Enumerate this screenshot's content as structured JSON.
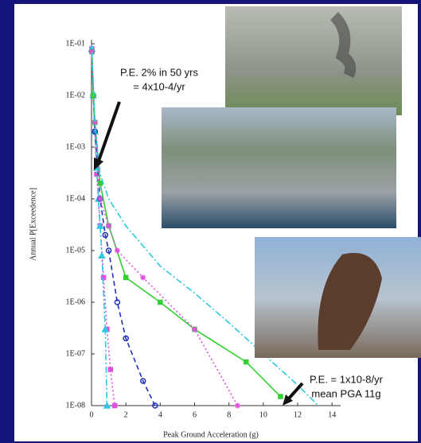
{
  "chart_data": {
    "type": "line",
    "x_label": "Peak Ground Acceleration (g)",
    "y_label": "Annual P[Exceedence]",
    "log_y": true,
    "xlim": [
      0,
      14.5
    ],
    "xticks": [
      0,
      2,
      4,
      6,
      8,
      10,
      12,
      14
    ],
    "ylim": [
      1e-08,
      0.1
    ],
    "yticks": [
      {
        "value": 0.1,
        "label": "1E-01"
      },
      {
        "value": 0.01,
        "label": "1E-02"
      },
      {
        "value": 0.001,
        "label": "1E-03"
      },
      {
        "value": 0.0001,
        "label": "1E-04"
      },
      {
        "value": 1e-05,
        "label": "1E-05"
      },
      {
        "value": 1e-06,
        "label": "1E-06"
      },
      {
        "value": 1e-07,
        "label": "1E-07"
      },
      {
        "value": 1e-08,
        "label": "1E-08"
      }
    ],
    "annotations": [
      {
        "lines": [
          "P.E. 2% in 50 yrs",
          "= 4x10-4/yr"
        ]
      },
      {
        "lines": [
          "P.E. = 1x10-8/yr",
          "mean PGA 11g"
        ]
      }
    ],
    "series": [
      {
        "color": "#e050e0",
        "dash": "2,3",
        "marker": "square",
        "x": [
          0.02,
          0.1,
          0.2,
          0.3,
          0.5,
          0.7,
          0.9,
          1.1,
          1.35
        ],
        "values": [
          0.08,
          0.01,
          0.002,
          0.0003,
          3e-05,
          3e-06,
          3e-07,
          5e-08,
          1e-08
        ]
      },
      {
        "color": "#30c8e0",
        "dash": "8,3,2,3",
        "marker": "triangle",
        "x": [
          0.02,
          0.1,
          0.2,
          0.3,
          0.4,
          0.5,
          0.6,
          0.8,
          0.9
        ],
        "values": [
          0.08,
          0.01,
          0.002,
          0.0004,
          0.0001,
          3e-05,
          8e-06,
          3e-07,
          1e-08
        ]
      },
      {
        "color": "#2030c0",
        "dash": "6,4",
        "marker": "circle",
        "x": [
          0.02,
          0.1,
          0.2,
          0.5,
          0.8,
          1.0,
          1.5,
          2.0,
          3.0,
          3.7
        ],
        "values": [
          0.07,
          0.01,
          0.002,
          0.0001,
          2e-05,
          1e-05,
          1e-06,
          2e-07,
          3e-08,
          1e-08
        ]
      },
      {
        "color": "#30d030",
        "dash": "none",
        "marker": "square",
        "x": [
          0.02,
          0.1,
          0.2,
          0.5,
          1.0,
          2.0,
          4.0,
          6.0,
          9.0,
          11.0
        ],
        "values": [
          0.07,
          0.01,
          0.003,
          0.0002,
          3e-05,
          3e-06,
          1e-06,
          3e-07,
          7e-08,
          1.5e-08
        ]
      },
      {
        "color": "#e050e0",
        "dash": "2,3",
        "marker": "star",
        "x": [
          0.02,
          0.2,
          0.5,
          1.0,
          1.5,
          3.0,
          6.0,
          8.5
        ],
        "values": [
          0.07,
          0.003,
          0.0001,
          3e-05,
          1e-05,
          3e-06,
          3e-07,
          1e-08
        ]
      },
      {
        "color": "#30c8e0",
        "dash": "8,3,2,3",
        "marker": "none",
        "x": [
          0.02,
          0.2,
          0.5,
          1,
          2,
          4,
          6,
          8,
          10,
          12,
          13.2
        ],
        "values": [
          0.07,
          0.003,
          0.0003,
          0.0001,
          3e-05,
          5e-06,
          1.5e-06,
          4e-07,
          1e-07,
          2.5e-08,
          1e-08
        ]
      }
    ]
  }
}
